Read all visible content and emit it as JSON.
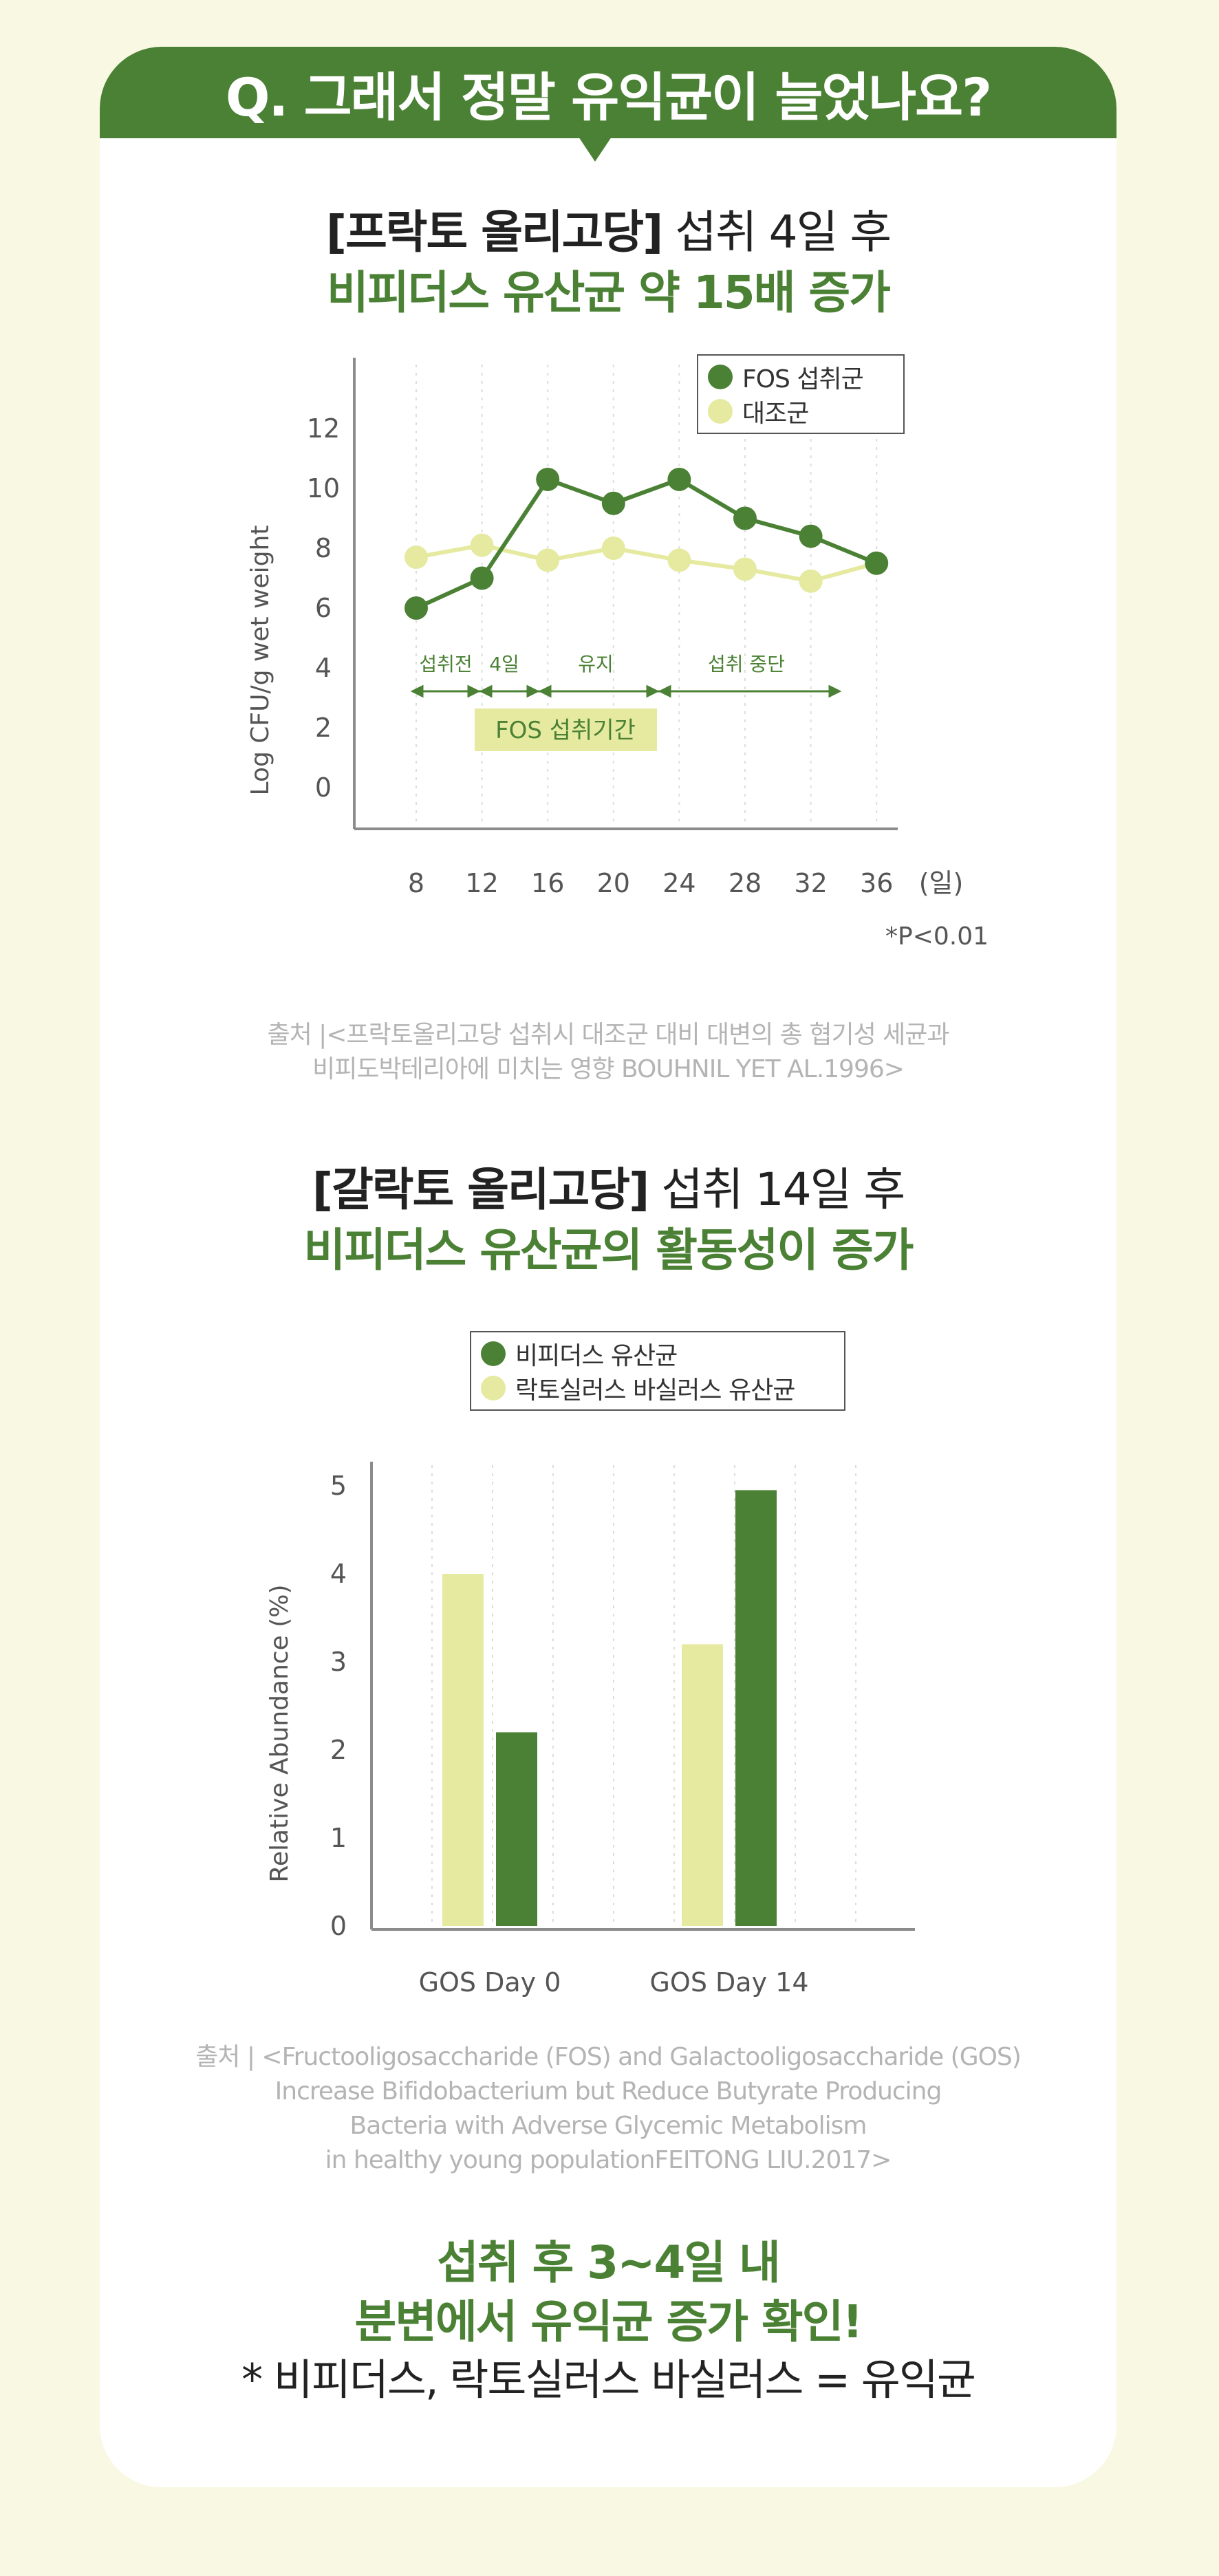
{
  "banner": {
    "title": "Q. 그래서 정말 유익균이 늘었나요?"
  },
  "section1": {
    "heading_bold": "[프락토 올리고당]",
    "heading_light": " 섭취 4일 후",
    "heading_green": "비피더스 유산균 약 15배 증가",
    "legend": [
      {
        "label": "FOS 섭취군",
        "color": "#4b8134"
      },
      {
        "label": "대조군",
        "color": "#e5eaa0"
      }
    ],
    "annotations": {
      "phase1": "섭취전",
      "phase2": "4일",
      "phase3": "유지",
      "phase4": "섭취 중단",
      "period": "FOS 섭취기간",
      "unit": "(일)",
      "pvalue": "*P<0.01"
    },
    "source_line1": "출처 |<프락토올리고당 섭취시 대조군 대비 대변의 총 협기성 세균과",
    "source_line2": "비피도박테리아에 미치는 영향 BOUHNIL YET AL.1996>"
  },
  "section2": {
    "heading_bold": "[갈락토 올리고당]",
    "heading_light": " 섭취 14일 후",
    "heading_green": "비피더스 유산균의 활동성이 증가",
    "legend": [
      {
        "label": "비피더스 유산균",
        "color": "#4b8134"
      },
      {
        "label": "락토실러스 바실러스 유산균",
        "color": "#e5eaa0"
      }
    ],
    "source_line1": "출처 | <Fructooligosaccharide (FOS) and Galactooligosaccharide (GOS)",
    "source_line2": "Increase Bifidobacterium but Reduce Butyrate Producing",
    "source_line3": "Bacteria with Adverse Glycemic Metabolism",
    "source_line4": "in healthy young populationFEITONG LIU.2017>"
  },
  "conclusion": {
    "line1": "섭취 후 3~4일 내",
    "line2": "분변에서 유익균 증가 확인!",
    "line3": "* 비피더스, 락토실러스 바실러스 = 유익균"
  },
  "chart_data": [
    {
      "type": "line",
      "ylabel": "Log CFU/g wet weight",
      "xlabel": "(일)",
      "x": [
        8,
        12,
        16,
        20,
        24,
        28,
        32,
        36
      ],
      "yticks": [
        0,
        2,
        4,
        6,
        8,
        10,
        12
      ],
      "ylim": [
        0,
        14
      ],
      "series": [
        {
          "name": "FOS 섭취군",
          "color": "#4b8134",
          "values": [
            6.0,
            7.0,
            10.3,
            9.5,
            10.3,
            9.0,
            8.4,
            7.5
          ]
        },
        {
          "name": "대조군",
          "color": "#e5eaa0",
          "values": [
            7.7,
            8.1,
            7.6,
            8.0,
            7.6,
            7.3,
            6.9,
            7.5
          ]
        }
      ],
      "legend": "top-right",
      "grid": "vertical dashed"
    },
    {
      "type": "bar",
      "ylabel": "Relative Abundance (%)",
      "categories": [
        "GOS Day 0",
        "GOS Day 14"
      ],
      "yticks": [
        0,
        1,
        2,
        3,
        4,
        5
      ],
      "ylim": [
        0,
        5.2
      ],
      "series": [
        {
          "name": "락토실러스 바실러스 유산균",
          "color": "#e5eaa0",
          "values": [
            4.0,
            3.2
          ]
        },
        {
          "name": "비피더스 유산균",
          "color": "#4b8134",
          "values": [
            2.2,
            4.95
          ]
        }
      ],
      "legend": "top",
      "grid": "vertical dashed"
    }
  ]
}
